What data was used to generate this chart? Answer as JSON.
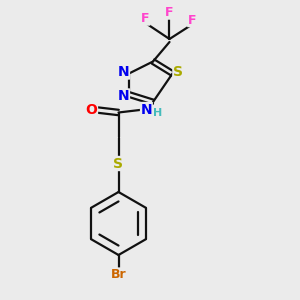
{
  "background_color": "#ebebeb",
  "figsize": [
    3.0,
    3.0
  ],
  "dpi": 100,
  "atom_colors": {
    "N": "#0000EE",
    "S": "#AAAA00",
    "O": "#FF0000",
    "F": "#FF44CC",
    "Br": "#CC6600",
    "C": "#111111",
    "H": "#44BBBB"
  },
  "bond_lw": 1.6,
  "double_sep": 0.012
}
